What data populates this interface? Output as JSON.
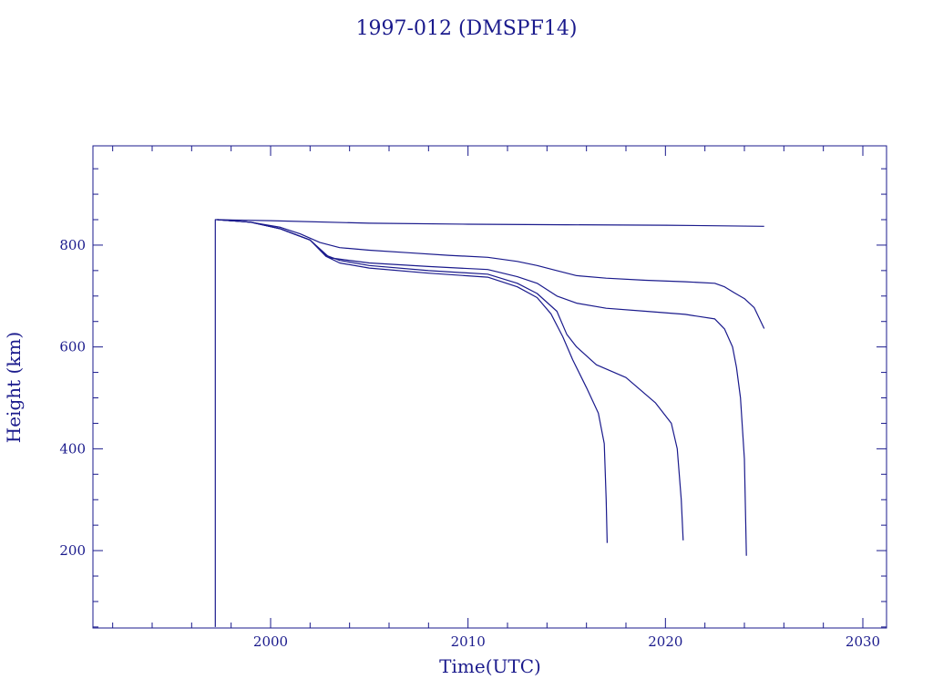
{
  "chart_data": {
    "type": "line",
    "title": "1997-012 (DMSPF14)",
    "xlabel": "Time(UTC)",
    "ylabel": "Height (km)",
    "xlim": [
      1991.0,
      2031.2
    ],
    "ylim": [
      48,
      995
    ],
    "x_ticks": [
      2000,
      2010,
      2020,
      2030
    ],
    "y_ticks": [
      200,
      400,
      600,
      800
    ],
    "grid": false,
    "line_color": "#1a1a8c",
    "series": [
      {
        "x": [
          1997.2,
          1997.2,
          1997.3
        ],
        "y": [
          50,
          850,
          850
        ]
      },
      {
        "x": [
          1997.3,
          2000,
          2005,
          2010,
          2015,
          2020,
          2025
        ],
        "y": [
          850,
          848,
          843,
          841,
          840,
          839,
          837
        ]
      },
      {
        "x": [
          1997.3,
          1999,
          2000.5,
          2001.5,
          2002.5,
          2003.5,
          2005,
          2007,
          2009,
          2011,
          2012.5,
          2013.5,
          2014.5,
          2015.5,
          2017,
          2019,
          2021,
          2022.5,
          2023,
          2023.5,
          2024,
          2024.5,
          2025
        ],
        "y": [
          850,
          845,
          835,
          822,
          805,
          795,
          790,
          785,
          780,
          776,
          768,
          760,
          750,
          740,
          735,
          731,
          728,
          725,
          718,
          706,
          695,
          677,
          636
        ]
      },
      {
        "x": [
          1997.3,
          1999,
          2000.5,
          2002,
          2003,
          2005,
          2008,
          2011,
          2012.5,
          2013.5,
          2014.5,
          2015.5,
          2017,
          2019,
          2021,
          2022.5,
          2023,
          2023.4,
          2023.6,
          2023.8,
          2024,
          2024.1
        ],
        "y": [
          850,
          845,
          832,
          810,
          775,
          765,
          758,
          752,
          738,
          725,
          700,
          686,
          676,
          670,
          664,
          655,
          635,
          600,
          560,
          500,
          380,
          190
        ]
      },
      {
        "x": [
          1997.3,
          1999,
          2000.5,
          2002,
          2002.8,
          2003.5,
          2005,
          2008,
          2011,
          2012.5,
          2013.5,
          2014.5,
          2015,
          2015.5,
          2016.5,
          2018,
          2019.5,
          2020.3,
          2020.6,
          2020.8,
          2020.9
        ],
        "y": [
          850,
          845,
          832,
          810,
          780,
          770,
          760,
          750,
          743,
          725,
          705,
          670,
          625,
          600,
          565,
          540,
          490,
          450,
          400,
          300,
          220
        ]
      },
      {
        "x": [
          1997.3,
          1999,
          2000.5,
          2002,
          2002.8,
          2003.5,
          2005,
          2008,
          2011,
          2012.5,
          2013.5,
          2014.2,
          2014.8,
          2015.3,
          2016,
          2016.6,
          2016.9,
          2017.0,
          2017.05
        ],
        "y": [
          850,
          845,
          832,
          810,
          778,
          765,
          755,
          745,
          737,
          718,
          697,
          665,
          620,
          575,
          520,
          470,
          410,
          300,
          215
        ]
      }
    ]
  }
}
